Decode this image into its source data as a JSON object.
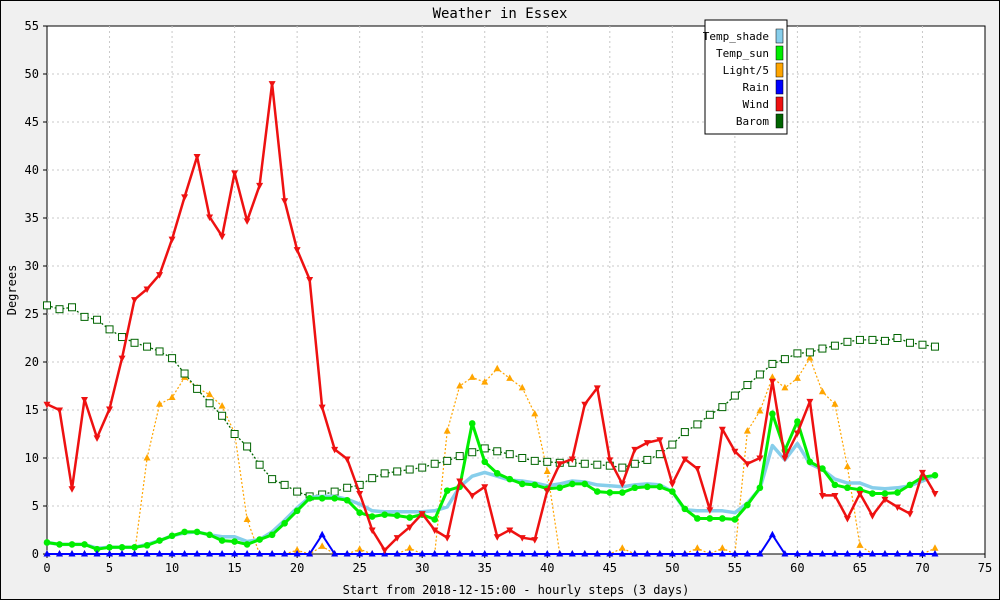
{
  "chart_data": {
    "type": "line",
    "title": "Weather in Essex",
    "xlabel": "Start from 2018-12-15:00 - hourly steps (3 days)",
    "ylabel": "Degrees",
    "xlim": [
      0,
      75
    ],
    "ylim": [
      0,
      55
    ],
    "xticks": [
      0,
      5,
      10,
      15,
      20,
      25,
      30,
      35,
      40,
      45,
      50,
      55,
      60,
      65,
      70,
      75
    ],
    "yticks": [
      0,
      5,
      10,
      15,
      20,
      25,
      30,
      35,
      40,
      45,
      50,
      55
    ],
    "grid": true,
    "legend_position": "top-right",
    "series": [
      {
        "name": "Temp_shade",
        "color": "#87ceeb",
        "marker": "none",
        "values": [
          1.2,
          1.0,
          1.0,
          1.0,
          0.6,
          0.7,
          0.7,
          0.7,
          1.0,
          1.4,
          1.9,
          2.2,
          2.3,
          2.0,
          1.8,
          1.8,
          1.3,
          1.5,
          2.3,
          3.5,
          4.8,
          5.9,
          6.0,
          6.0,
          5.7,
          5.2,
          4.5,
          4.4,
          4.4,
          4.4,
          4.4,
          4.5,
          4.9,
          7.0,
          8.1,
          8.5,
          8.1,
          7.7,
          7.6,
          7.4,
          7.1,
          7.3,
          7.6,
          7.5,
          7.2,
          7.1,
          7.0,
          7.2,
          7.3,
          7.2,
          6.5,
          4.6,
          4.5,
          4.5,
          4.5,
          4.3,
          5.3,
          6.8,
          11.3,
          9.8,
          11.5,
          9.4,
          8.8,
          7.8,
          7.4,
          7.4,
          6.9,
          6.8,
          6.9,
          7.1,
          7.6,
          8.2
        ]
      },
      {
        "name": "Temp_sun",
        "color": "#00ee00",
        "marker": "dot",
        "values": [
          1.2,
          1.0,
          1.0,
          1.0,
          0.5,
          0.7,
          0.7,
          0.7,
          0.9,
          1.4,
          1.9,
          2.3,
          2.3,
          2.0,
          1.4,
          1.3,
          1.0,
          1.5,
          2.0,
          3.2,
          4.5,
          5.8,
          5.8,
          5.8,
          5.6,
          4.3,
          3.9,
          4.1,
          4.0,
          3.8,
          4.1,
          3.6,
          6.6,
          7.0,
          13.6,
          9.6,
          8.4,
          7.8,
          7.3,
          7.2,
          6.8,
          6.9,
          7.3,
          7.3,
          6.5,
          6.4,
          6.4,
          6.9,
          7.0,
          7.0,
          6.5,
          4.7,
          3.7,
          3.7,
          3.7,
          3.6,
          5.1,
          6.9,
          14.6,
          10.8,
          13.8,
          9.6,
          8.9,
          7.2,
          6.9,
          6.7,
          6.3,
          6.3,
          6.4,
          7.2,
          8.0,
          8.2
        ]
      },
      {
        "name": "Light/5",
        "color": "#ffa500",
        "marker": "triangle",
        "values": [
          0,
          0,
          0,
          0,
          0,
          0,
          0,
          0,
          10.0,
          15.6,
          16.3,
          18.4,
          17.3,
          16.6,
          15.4,
          12.6,
          3.6,
          0,
          0,
          0,
          0.4,
          0,
          0.8,
          0,
          0,
          0.5,
          0,
          0,
          0,
          0.6,
          0,
          0,
          12.8,
          17.5,
          18.4,
          17.9,
          19.3,
          18.3,
          17.3,
          14.6,
          8.6,
          0,
          0,
          0,
          0,
          0,
          0.6,
          0,
          0,
          0,
          0,
          0,
          0.6,
          0,
          0.6,
          0,
          12.8,
          14.9,
          18.4,
          17.3,
          18.3,
          20.4,
          16.9,
          15.6,
          9.1,
          0.9,
          0,
          0,
          0,
          0,
          0,
          0.6
        ]
      },
      {
        "name": "Rain",
        "color": "#0000ff",
        "marker": "triangle-up",
        "values": [
          0,
          0,
          0,
          0,
          0,
          0,
          0,
          0,
          0,
          0,
          0,
          0,
          0,
          0,
          0,
          0,
          0,
          0,
          0,
          0,
          0,
          0,
          2.0,
          0,
          0,
          0,
          0,
          0,
          0,
          0,
          0,
          0,
          0,
          0,
          0,
          0,
          0,
          0,
          0,
          0,
          0,
          0,
          0,
          0,
          0,
          0,
          0,
          0,
          0,
          0,
          0,
          0,
          0,
          0,
          0,
          0,
          0,
          0,
          2.0,
          0,
          0,
          0,
          0,
          0,
          0,
          0,
          0,
          0,
          0,
          0,
          0,
          0
        ]
      },
      {
        "name": "Wind",
        "color": "#ee1111",
        "marker": "triangle-down",
        "values": [
          15.6,
          15.0,
          6.8,
          16.1,
          12.1,
          15.1,
          20.4,
          26.5,
          27.6,
          29.1,
          32.8,
          37.2,
          41.4,
          35.1,
          33.1,
          39.7,
          34.7,
          38.4,
          49.0,
          36.8,
          31.7,
          28.6,
          15.3,
          10.9,
          9.9,
          6.3,
          2.5,
          0.4,
          1.7,
          2.8,
          4.2,
          2.5,
          1.7,
          7.6,
          6.1,
          7.0,
          1.8,
          2.5,
          1.7,
          1.5,
          6.6,
          9.4,
          9.9,
          15.6,
          17.3,
          9.8,
          7.3,
          10.9,
          11.6,
          11.9,
          7.3,
          9.9,
          8.9,
          4.6,
          13.0,
          10.7,
          9.4,
          10.0,
          18.0,
          10.0,
          12.6,
          15.9,
          6.1,
          6.1,
          3.7,
          6.3,
          4.0,
          5.7,
          4.9,
          4.2,
          8.5,
          6.3
        ]
      },
      {
        "name": "Barom",
        "color": "#006400",
        "marker": "square",
        "values": [
          25.9,
          25.5,
          25.7,
          24.7,
          24.4,
          23.4,
          22.6,
          22.0,
          21.6,
          21.1,
          20.4,
          18.8,
          17.2,
          15.7,
          14.4,
          12.5,
          11.2,
          9.3,
          7.8,
          7.2,
          6.5,
          6.0,
          6.2,
          6.5,
          6.9,
          7.2,
          7.9,
          8.4,
          8.6,
          8.8,
          9.0,
          9.4,
          9.7,
          10.2,
          10.6,
          11.0,
          10.7,
          10.4,
          10.0,
          9.7,
          9.6,
          9.5,
          9.5,
          9.4,
          9.3,
          9.2,
          9.0,
          9.4,
          9.8,
          10.4,
          11.4,
          12.7,
          13.5,
          14.5,
          15.3,
          16.5,
          17.6,
          18.7,
          19.8,
          20.3,
          20.9,
          21.0,
          21.4,
          21.7,
          22.1,
          22.3,
          22.3,
          22.2,
          22.5,
          22.0,
          21.8,
          21.6
        ]
      }
    ]
  }
}
